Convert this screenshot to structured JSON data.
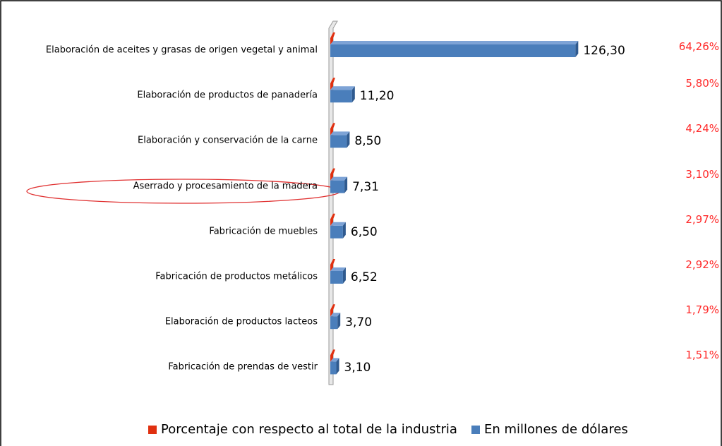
{
  "chart_data": {
    "type": "bar",
    "categories": [
      "Elaboración de aceites y grasas de origen vegetal y animal",
      "Elaboración de productos de panadería",
      "Elaboración y conservación de la carne",
      "Aserrado y procesamiento de la madera",
      "Fabricación de muebles",
      "Fabricación de productos metálicos",
      "Elaboración de productos lacteos",
      "Fabricación de prendas de vestir"
    ],
    "series": [
      {
        "name": "Porcentaje con respecto al total de la industria",
        "color": "#e03010",
        "values": [
          64.26,
          5.8,
          4.24,
          3.1,
          2.97,
          2.92,
          1.79,
          1.51
        ],
        "value_labels": [
          "64,26%",
          "5,80%",
          "4,24%",
          "3,10%",
          "2,97%",
          "2,92%",
          "1,79%",
          "1,51%"
        ]
      },
      {
        "name": "En millones de dólares",
        "color": "#4a7ebb",
        "values": [
          126.3,
          11.2,
          8.5,
          7.31,
          6.5,
          6.52,
          3.7,
          3.1
        ],
        "value_labels": [
          "126,30",
          "11,20",
          "8,50",
          "7,31",
          "6,50",
          "6,52",
          "3,70",
          "3,10"
        ]
      }
    ]
  }
}
